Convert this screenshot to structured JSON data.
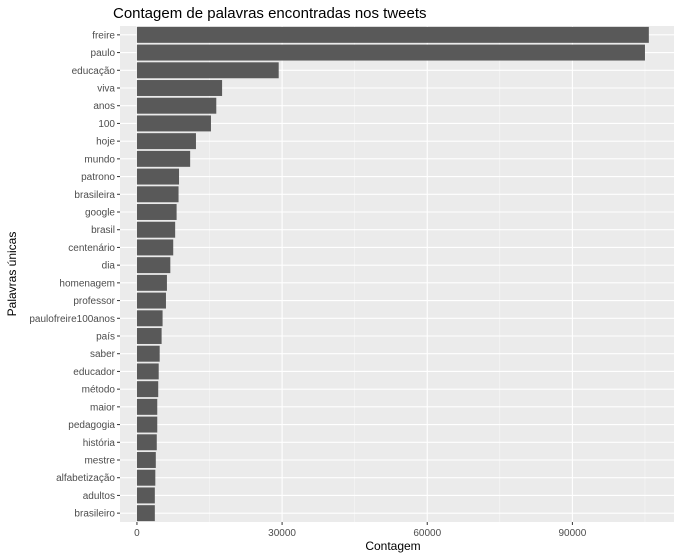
{
  "chart_data": {
    "type": "bar",
    "orientation": "horizontal",
    "title": "Contagem de palavras encontradas nos tweets",
    "xlabel": "Contagem",
    "ylabel": "Palavras únicas",
    "xlim": [
      -3500,
      111000
    ],
    "xticks": [
      0,
      30000,
      60000,
      90000
    ],
    "xtick_labels": [
      "0",
      "30000",
      "60000",
      "90000"
    ],
    "grid": true,
    "categories": [
      "freire",
      "paulo",
      "educação",
      "viva",
      "anos",
      "100",
      "hoje",
      "mundo",
      "patrono",
      "brasileira",
      "google",
      "brasil",
      "centenário",
      "dia",
      "homenagem",
      "professor",
      "paulofreire100anos",
      "país",
      "saber",
      "educador",
      "método",
      "maior",
      "pedagogia",
      "história",
      "mestre",
      "alfabetização",
      "adultos",
      "brasileiro"
    ],
    "values": [
      105800,
      105000,
      29300,
      17600,
      16400,
      15300,
      12200,
      11000,
      8700,
      8600,
      8200,
      7900,
      7500,
      6900,
      6200,
      6000,
      5300,
      5100,
      4700,
      4500,
      4400,
      4200,
      4200,
      4100,
      3900,
      3800,
      3700,
      3700
    ],
    "colors": {
      "bar": "#595959",
      "panel": "#ebebeb",
      "grid_major": "#ffffff",
      "tick_text": "#4d4d4d"
    }
  }
}
